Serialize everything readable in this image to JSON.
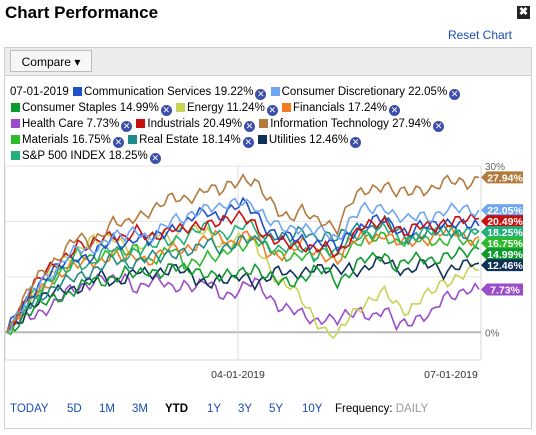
{
  "title": "Chart Performance",
  "close_icon": "✖",
  "reset_label": "Reset Chart",
  "compare_label": "Compare",
  "legend_date": "07-01-2019",
  "legend_rows": [
    [
      {
        "label": "Communication Services 19.22%",
        "color": "#1f4fc7"
      },
      {
        "label": "Consumer Discretionary 22.05%",
        "color": "#6ea6f2"
      }
    ],
    [
      {
        "label": "Consumer Staples 14.99%",
        "color": "#0e9b2e"
      },
      {
        "label": "Energy 11.24%",
        "color": "#c7d256"
      },
      {
        "label": "Financials 17.24%",
        "color": "#f27b22"
      }
    ],
    [
      {
        "label": "Health Care 7.73%",
        "color": "#9b4cc9"
      },
      {
        "label": "Industrials 20.49%",
        "color": "#c81010"
      },
      {
        "label": "Information Technology 27.94%",
        "color": "#b47a3c"
      }
    ],
    [
      {
        "label": "Materials 16.75%",
        "color": "#2dbb2d"
      },
      {
        "label": "Real Estate 18.14%",
        "color": "#1e8a8a"
      },
      {
        "label": "Utilities 12.46%",
        "color": "#0f3057"
      }
    ],
    [
      {
        "label": "S&P 500 INDEX 18.25%",
        "color": "#22b07a"
      }
    ]
  ],
  "chart_data": {
    "type": "line",
    "x_ticks": [
      "04-01-2019",
      "07-01-2019"
    ],
    "y_ticks": [
      "30%",
      "0%"
    ],
    "ylim": [
      -5,
      30
    ],
    "points": 125,
    "series": [
      {
        "name": "Health Care",
        "color": "#9b4cc9",
        "values": [
          0,
          2,
          3,
          4,
          5,
          7,
          8,
          9,
          10,
          9,
          10,
          8,
          9,
          9,
          8,
          9,
          8,
          9,
          7,
          7,
          8,
          9,
          7,
          5,
          4,
          3,
          2,
          3,
          2,
          3,
          4,
          3,
          4,
          1,
          2,
          3,
          3,
          6,
          7,
          8,
          7.73
        ]
      },
      {
        "name": "Energy",
        "color": "#c7d256",
        "values": [
          0,
          3,
          6,
          8,
          11,
          13,
          15,
          17,
          16,
          17,
          16,
          15,
          16,
          18,
          17,
          19,
          18,
          18,
          16,
          16,
          17,
          16,
          13,
          9,
          8,
          6,
          3,
          0,
          -1,
          3,
          5,
          6,
          7,
          5,
          4,
          6,
          7,
          9,
          10,
          11,
          11.24
        ]
      },
      {
        "name": "Utilities",
        "color": "#0f3057",
        "values": [
          0,
          2,
          5,
          6,
          7,
          8,
          8,
          9,
          10,
          9,
          10,
          11,
          10,
          11,
          12,
          11,
          9,
          9,
          10,
          9,
          10,
          9,
          10,
          11,
          10,
          11,
          12,
          11,
          11,
          12,
          11,
          12,
          13,
          12,
          11,
          12,
          12,
          11,
          12,
          12,
          12.46
        ]
      },
      {
        "name": "Consumer Staples",
        "color": "#0e9b2e",
        "values": [
          0,
          2,
          4,
          5,
          6,
          7,
          8,
          9,
          9,
          10,
          11,
          10,
          11,
          11,
          12,
          11,
          11,
          11,
          10,
          10,
          11,
          12,
          10,
          9,
          9,
          10,
          11,
          11,
          9,
          11,
          13,
          13,
          14,
          12,
          13,
          13,
          13,
          14,
          14,
          14,
          14.99
        ]
      },
      {
        "name": "Materials",
        "color": "#2dbb2d",
        "values": [
          0,
          3,
          6,
          8,
          10,
          12,
          14,
          13,
          14,
          15,
          14,
          15,
          13,
          14,
          15,
          12,
          13,
          14,
          13,
          15,
          16,
          17,
          15,
          14,
          14,
          14,
          13,
          15,
          14,
          15,
          16,
          17,
          18,
          16,
          16,
          17,
          17,
          16,
          17,
          16,
          16.75
        ]
      },
      {
        "name": "Financials",
        "color": "#f27b22",
        "values": [
          0,
          3,
          6,
          8,
          10,
          11,
          12,
          13,
          13,
          14,
          13,
          14,
          13,
          14,
          15,
          15,
          16,
          17,
          17,
          16,
          18,
          17,
          14,
          14,
          15,
          16,
          14,
          14,
          13,
          16,
          17,
          17,
          18,
          16,
          16,
          17,
          17,
          18,
          18,
          17,
          17.24
        ]
      },
      {
        "name": "Real Estate",
        "color": "#1e8a8a",
        "values": [
          0,
          3,
          5,
          7,
          8,
          9,
          10,
          11,
          12,
          13,
          12,
          13,
          14,
          13,
          14,
          15,
          15,
          16,
          15,
          16,
          17,
          16,
          17,
          18,
          17,
          18,
          17,
          18,
          17,
          18,
          19,
          19,
          20,
          18,
          17,
          18,
          18,
          18,
          18,
          18,
          18.14
        ]
      },
      {
        "name": "S&P 500 INDEX",
        "color": "#22b07a",
        "values": [
          0,
          3,
          6,
          8,
          10,
          11,
          13,
          12,
          14,
          15,
          14,
          15,
          15,
          16,
          17,
          17,
          18,
          19,
          18,
          18,
          19,
          19,
          16,
          15,
          15,
          15,
          14,
          15,
          14,
          17,
          18,
          18,
          19,
          17,
          17,
          18,
          18,
          18,
          19,
          18,
          18.25
        ]
      },
      {
        "name": "Communication Services",
        "color": "#1f4fc7",
        "values": [
          0,
          4,
          7,
          9,
          11,
          13,
          14,
          13,
          15,
          17,
          16,
          17,
          16,
          18,
          19,
          19,
          21,
          22,
          21,
          22,
          23,
          22,
          19,
          17,
          17,
          17,
          16,
          16,
          15,
          18,
          19,
          20,
          20,
          19,
          18,
          19,
          19,
          20,
          20,
          19,
          19.22
        ]
      },
      {
        "name": "Industrials",
        "color": "#c81010",
        "values": [
          0,
          4,
          8,
          10,
          12,
          14,
          16,
          15,
          17,
          18,
          17,
          18,
          17,
          18,
          19,
          18,
          19,
          20,
          20,
          20,
          21,
          20,
          17,
          16,
          16,
          16,
          15,
          15,
          14,
          17,
          19,
          19,
          20,
          19,
          18,
          19,
          19,
          20,
          20,
          20,
          20.49
        ]
      },
      {
        "name": "Consumer Discretionary",
        "color": "#6ea6f2",
        "values": [
          0,
          4,
          7,
          9,
          11,
          14,
          15,
          14,
          16,
          18,
          17,
          18,
          17,
          19,
          20,
          20,
          22,
          23,
          22,
          23,
          24,
          23,
          20,
          19,
          19,
          19,
          18,
          18,
          17,
          20,
          22,
          22,
          23,
          21,
          20,
          21,
          21,
          22,
          22,
          22,
          22.05
        ]
      },
      {
        "name": "Information Technology",
        "color": "#b47a3c",
        "values": [
          0,
          4,
          8,
          11,
          13,
          15,
          17,
          16,
          18,
          20,
          19,
          21,
          22,
          23,
          24,
          24,
          25,
          26,
          25,
          27,
          28,
          27,
          24,
          22,
          21,
          22,
          20,
          20,
          19,
          23,
          25,
          26,
          27,
          25,
          25,
          26,
          26,
          27,
          27,
          27,
          27.94
        ]
      }
    ],
    "end_labels": [
      {
        "text": "27.94%",
        "color": "#b47a3c",
        "value": 27.94
      },
      {
        "text": "22.05%",
        "color": "#6ea6f2",
        "value": 22.05
      },
      {
        "text": "20.49%",
        "color": "#c81010",
        "value": 20.49
      },
      {
        "text": "18.25%",
        "color": "#22b07a",
        "value": 18.25
      },
      {
        "text": "16.75%",
        "color": "#2dbb2d",
        "value": 16.75
      },
      {
        "text": "14.99%",
        "color": "#0e9b2e",
        "value": 14.99
      },
      {
        "text": "12.46%",
        "color": "#0f3057",
        "value": 12.46
      },
      {
        "text": "7.73%",
        "color": "#9b4cc9",
        "value": 7.73
      }
    ]
  },
  "ranges": [
    {
      "label": "TODAY",
      "selected": false
    },
    {
      "label": "5D",
      "selected": false
    },
    {
      "label": "1M",
      "selected": false
    },
    {
      "label": "3M",
      "selected": false
    },
    {
      "label": "YTD",
      "selected": true
    },
    {
      "label": "1Y",
      "selected": false
    },
    {
      "label": "3Y",
      "selected": false
    },
    {
      "label": "5Y",
      "selected": false
    },
    {
      "label": "10Y",
      "selected": false
    }
  ],
  "frequency_label": "Frequency:",
  "frequency_value": "DAILY"
}
